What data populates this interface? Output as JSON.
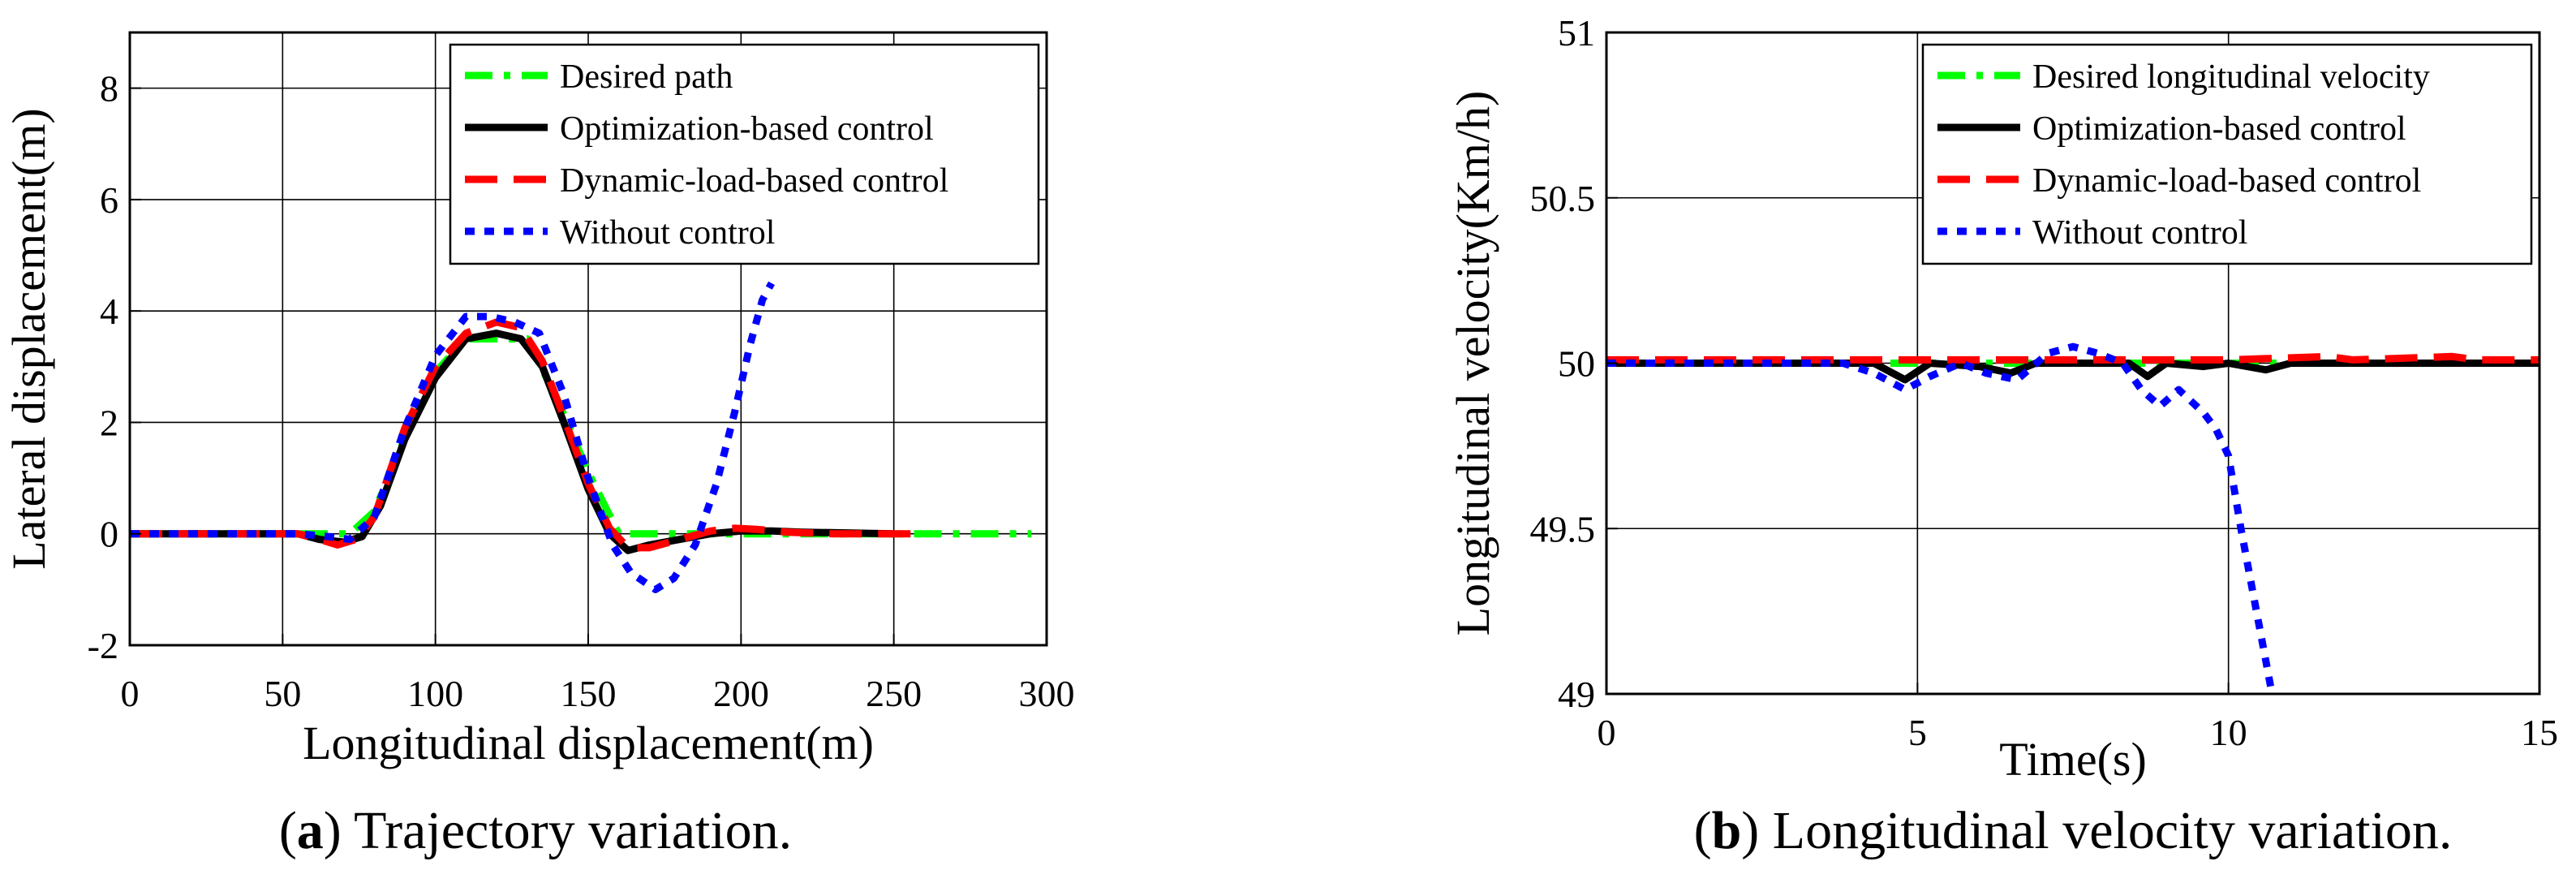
{
  "chart_data": [
    {
      "type": "line",
      "panel": "a",
      "caption_letter": "a",
      "caption_text": "Trajectory variation.",
      "title": "",
      "xlabel": "Longitudinal displacement(m)",
      "ylabel": "Lateral displacement(m)",
      "xlim": [
        0,
        300
      ],
      "ylim": [
        -2,
        9
      ],
      "xticks": [
        0,
        50,
        100,
        150,
        200,
        250,
        300
      ],
      "yticks": [
        -2,
        0,
        2,
        4,
        6,
        8
      ],
      "grid": true,
      "legend_position": "top-right",
      "series": [
        {
          "name": "Desired path",
          "color": "#00ff00",
          "style": "dashdot",
          "points": [
            [
              0,
              0
            ],
            [
              60,
              0
            ],
            [
              72,
              0
            ],
            [
              80,
              0.4
            ],
            [
              90,
              1.7
            ],
            [
              100,
              2.9
            ],
            [
              110,
              3.5
            ],
            [
              120,
              3.5
            ],
            [
              130,
              3.5
            ],
            [
              140,
              2.4
            ],
            [
              150,
              1.1
            ],
            [
              160,
              0
            ],
            [
              180,
              0
            ],
            [
              220,
              0
            ],
            [
              260,
              0
            ],
            [
              295,
              0
            ]
          ]
        },
        {
          "name": "Optimization-based control",
          "color": "#000000",
          "style": "solid",
          "points": [
            [
              0,
              0
            ],
            [
              55,
              0
            ],
            [
              62,
              -0.1
            ],
            [
              70,
              -0.15
            ],
            [
              76,
              -0.05
            ],
            [
              82,
              0.5
            ],
            [
              90,
              1.7
            ],
            [
              100,
              2.8
            ],
            [
              110,
              3.5
            ],
            [
              120,
              3.6
            ],
            [
              128,
              3.5
            ],
            [
              135,
              3.0
            ],
            [
              142,
              2.0
            ],
            [
              150,
              0.8
            ],
            [
              157,
              0.0
            ],
            [
              163,
              -0.3
            ],
            [
              170,
              -0.2
            ],
            [
              180,
              -0.1
            ],
            [
              190,
              0
            ],
            [
              200,
              0.05
            ],
            [
              210,
              0.05
            ],
            [
              220,
              0.03
            ],
            [
              250,
              0
            ]
          ]
        },
        {
          "name": "Dynamic-load-based control",
          "color": "#ff0000",
          "style": "dashed",
          "points": [
            [
              0,
              0
            ],
            [
              55,
              0
            ],
            [
              62,
              -0.1
            ],
            [
              68,
              -0.2
            ],
            [
              74,
              -0.1
            ],
            [
              80,
              0.3
            ],
            [
              90,
              1.9
            ],
            [
              100,
              3.0
            ],
            [
              110,
              3.6
            ],
            [
              120,
              3.8
            ],
            [
              128,
              3.7
            ],
            [
              135,
              3.1
            ],
            [
              142,
              2.1
            ],
            [
              150,
              0.9
            ],
            [
              157,
              0.1
            ],
            [
              163,
              -0.25
            ],
            [
              170,
              -0.25
            ],
            [
              180,
              -0.1
            ],
            [
              190,
              0.05
            ],
            [
              198,
              0.1
            ],
            [
              205,
              0.08
            ],
            [
              215,
              0.03
            ],
            [
              230,
              0
            ],
            [
              258,
              0
            ]
          ]
        },
        {
          "name": "Without control",
          "color": "#0000ff",
          "style": "dotted",
          "points": [
            [
              0,
              0
            ],
            [
              55,
              0
            ],
            [
              65,
              -0.05
            ],
            [
              72,
              -0.1
            ],
            [
              80,
              0.3
            ],
            [
              90,
              1.9
            ],
            [
              100,
              3.2
            ],
            [
              110,
              3.9
            ],
            [
              118,
              3.9
            ],
            [
              126,
              3.8
            ],
            [
              134,
              3.6
            ],
            [
              142,
              2.5
            ],
            [
              150,
              1.0
            ],
            [
              158,
              -0.2
            ],
            [
              164,
              -0.7
            ],
            [
              172,
              -1.0
            ],
            [
              178,
              -0.8
            ],
            [
              185,
              -0.2
            ],
            [
              192,
              0.9
            ],
            [
              198,
              2.2
            ],
            [
              203,
              3.4
            ],
            [
              207,
              4.2
            ],
            [
              210,
              4.5
            ]
          ]
        }
      ]
    },
    {
      "type": "line",
      "panel": "b",
      "caption_letter": "b",
      "caption_text": "Longitudinal velocity variation.",
      "title": "",
      "xlabel": "Time(s)",
      "ylabel": "Longitudinal velocity(Km/h)",
      "xlim": [
        0,
        15
      ],
      "ylim": [
        49,
        51
      ],
      "xticks": [
        0,
        5,
        10,
        15
      ],
      "yticks": [
        49,
        49.5,
        50,
        50.5,
        51
      ],
      "grid": true,
      "legend_position": "top-right",
      "series": [
        {
          "name": "Desired longitudinal velocity",
          "color": "#00ff00",
          "style": "dashdot",
          "points": [
            [
              0,
              50
            ],
            [
              15,
              50
            ]
          ]
        },
        {
          "name": "Optimization-based control",
          "color": "#000000",
          "style": "solid",
          "points": [
            [
              0,
              50
            ],
            [
              4.3,
              50
            ],
            [
              4.8,
              49.95
            ],
            [
              5.2,
              50
            ],
            [
              6.0,
              49.99
            ],
            [
              6.5,
              49.97
            ],
            [
              6.9,
              50
            ],
            [
              7.5,
              50
            ],
            [
              8.4,
              50
            ],
            [
              8.7,
              49.96
            ],
            [
              9.0,
              50
            ],
            [
              9.6,
              49.99
            ],
            [
              10.0,
              50
            ],
            [
              10.6,
              49.98
            ],
            [
              11.0,
              50
            ],
            [
              15,
              50
            ]
          ]
        },
        {
          "name": "Dynamic-load-based control",
          "color": "#ff0000",
          "style": "dashed",
          "points": [
            [
              0,
              50.01
            ],
            [
              5,
              50.01
            ],
            [
              8,
              50.01
            ],
            [
              10,
              50.01
            ],
            [
              11.6,
              50.02
            ],
            [
              12,
              50.01
            ],
            [
              13.6,
              50.02
            ],
            [
              14,
              50.01
            ],
            [
              15,
              50.01
            ]
          ]
        },
        {
          "name": "Without control",
          "color": "#0000ff",
          "style": "dotted",
          "points": [
            [
              0,
              50
            ],
            [
              3.8,
              50
            ],
            [
              4.3,
              49.97
            ],
            [
              4.8,
              49.92
            ],
            [
              5.2,
              49.96
            ],
            [
              5.7,
              50
            ],
            [
              6.1,
              49.97
            ],
            [
              6.6,
              49.95
            ],
            [
              7.1,
              50.03
            ],
            [
              7.5,
              50.05
            ],
            [
              7.9,
              50.03
            ],
            [
              8.3,
              50
            ],
            [
              8.6,
              49.92
            ],
            [
              8.9,
              49.87
            ],
            [
              9.2,
              49.92
            ],
            [
              9.6,
              49.85
            ],
            [
              9.8,
              49.8
            ],
            [
              10.0,
              49.72
            ],
            [
              10.2,
              49.5
            ],
            [
              10.4,
              49.3
            ],
            [
              10.6,
              49.1
            ],
            [
              10.7,
              49.0
            ]
          ]
        }
      ]
    }
  ]
}
